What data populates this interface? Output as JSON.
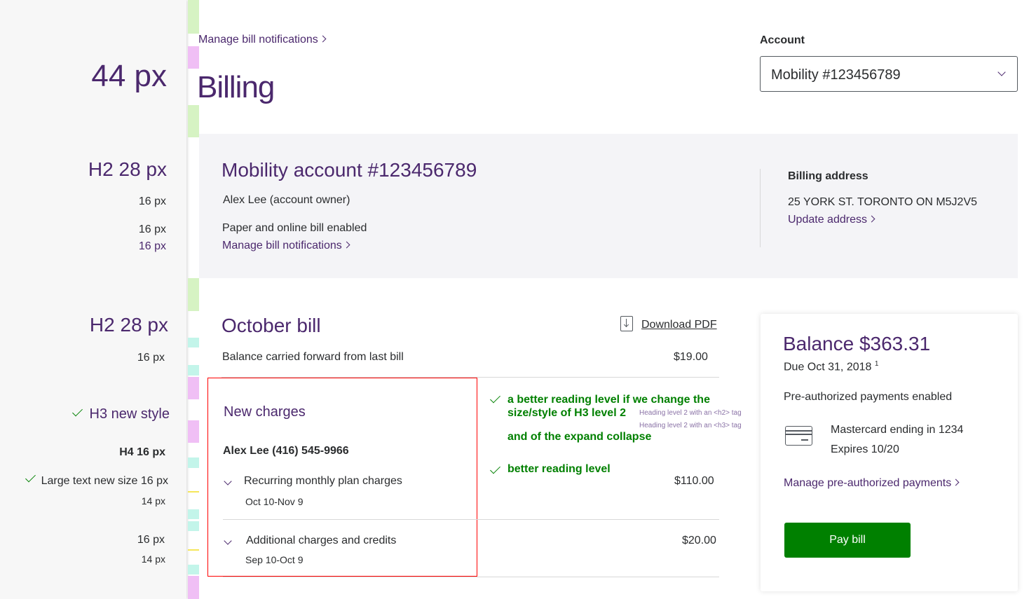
{
  "annotations": {
    "h1": "44 px",
    "h2a": "H2 28 px",
    "s1": "16 px",
    "s2": "16 px",
    "s3": "16 px",
    "h2b": "H2 28 px",
    "s4": "16 px",
    "h3": "H3 new style",
    "h4": "H4 16 px",
    "large": "Large text new size 16 px",
    "s5": "14 px",
    "s6": "16 px",
    "s7": "14 px",
    "note1": "a better reading level if we change the",
    "note1b": "size/style of H3 level 2",
    "note2": "and of the expand collapse",
    "note3": "better reading level",
    "tag_h2": "Heading level 2 with an <h2> tag",
    "tag_h3": "Heading level 2 with an <h3> tag"
  },
  "header": {
    "top_link": "Manage bill notifications",
    "title": "Billing",
    "account_label": "Account",
    "account_value": "Mobility #123456789"
  },
  "account_panel": {
    "title": "Mobility account #123456789",
    "owner": "Alex Lee (account owner)",
    "bill_pref": "Paper and online bill enabled",
    "manage_link": "Manage bill notifications",
    "address_label": "Billing address",
    "address": "25 YORK ST. TORONTO ON M5J2V5",
    "update_link": "Update address"
  },
  "bill": {
    "title": "October bill",
    "download": "Download PDF",
    "carried_label": "Balance carried forward from last bill",
    "carried_amount": "$19.00",
    "new_charges": "New charges",
    "subscriber": "Alex Lee (416) 545-9966",
    "items": [
      {
        "label": "Recurring monthly plan charges",
        "dates": "Oct 10-Nov 9",
        "amount": "$110.00"
      },
      {
        "label": "Additional charges and credits",
        "dates": "Sep 10-Oct 9",
        "amount": "$20.00"
      }
    ]
  },
  "balance": {
    "title": "Balance $363.31",
    "due": "Due Oct 31, 2018",
    "footnote": "1",
    "pap": "Pre-authorized payments enabled",
    "card": "Mastercard ending in 1234",
    "expires": "Expires 10/20",
    "manage_link": "Manage pre-authorized payments",
    "pay_button": "Pay bill"
  },
  "colors": {
    "brand": "#4b286d",
    "accent": "#008000",
    "highlight": "#ff0000"
  }
}
